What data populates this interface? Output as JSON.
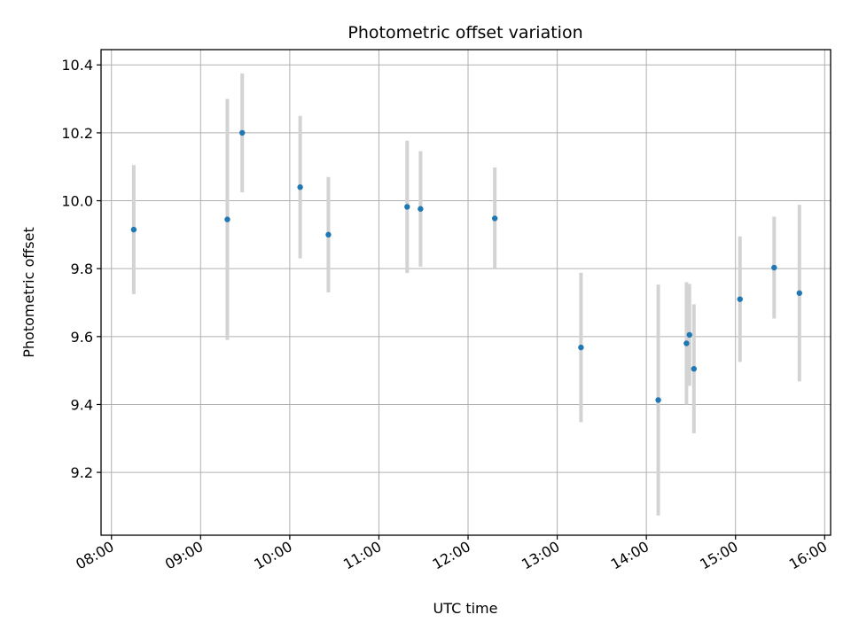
{
  "chart_data": {
    "type": "scatter",
    "title": "Photometric offset variation",
    "xlabel": "UTC time",
    "ylabel": "Photometric offset",
    "x_ticks": [
      "08:00",
      "09:00",
      "10:00",
      "11:00",
      "12:00",
      "13:00",
      "14:00",
      "15:00",
      "16:00"
    ],
    "y_ticks": [
      "9.2",
      "9.4",
      "9.6",
      "9.8",
      "10.0",
      "10.2",
      "10.4"
    ],
    "xlim": [
      "07:53",
      "16:04"
    ],
    "ylim": [
      9.015,
      10.445
    ],
    "grid": true,
    "series": [
      {
        "marker_color": "#1f77b4",
        "errorbar_color": "#d3d3d3",
        "points": [
          {
            "x": "08:15",
            "y": 9.915,
            "yerr": 0.19
          },
          {
            "x": "09:18",
            "y": 9.945,
            "yerr": 0.355
          },
          {
            "x": "09:28",
            "y": 10.2,
            "yerr": 0.175
          },
          {
            "x": "10:07",
            "y": 10.04,
            "yerr": 0.21
          },
          {
            "x": "10:26",
            "y": 9.9,
            "yerr": 0.17
          },
          {
            "x": "11:19",
            "y": 9.982,
            "yerr": 0.195
          },
          {
            "x": "11:28",
            "y": 9.976,
            "yerr": 0.17
          },
          {
            "x": "12:18",
            "y": 9.948,
            "yerr": 0.15
          },
          {
            "x": "13:16",
            "y": 9.568,
            "yerr": 0.22
          },
          {
            "x": "14:08",
            "y": 9.413,
            "yerr": 0.34
          },
          {
            "x": "14:27",
            "y": 9.58,
            "yerr": 0.18
          },
          {
            "x": "14:29",
            "y": 9.605,
            "yerr": 0.15
          },
          {
            "x": "14:32",
            "y": 9.505,
            "yerr": 0.19
          },
          {
            "x": "15:03",
            "y": 9.71,
            "yerr": 0.185
          },
          {
            "x": "15:26",
            "y": 9.803,
            "yerr": 0.15
          },
          {
            "x": "15:43",
            "y": 9.728,
            "yerr": 0.26
          }
        ]
      }
    ]
  }
}
